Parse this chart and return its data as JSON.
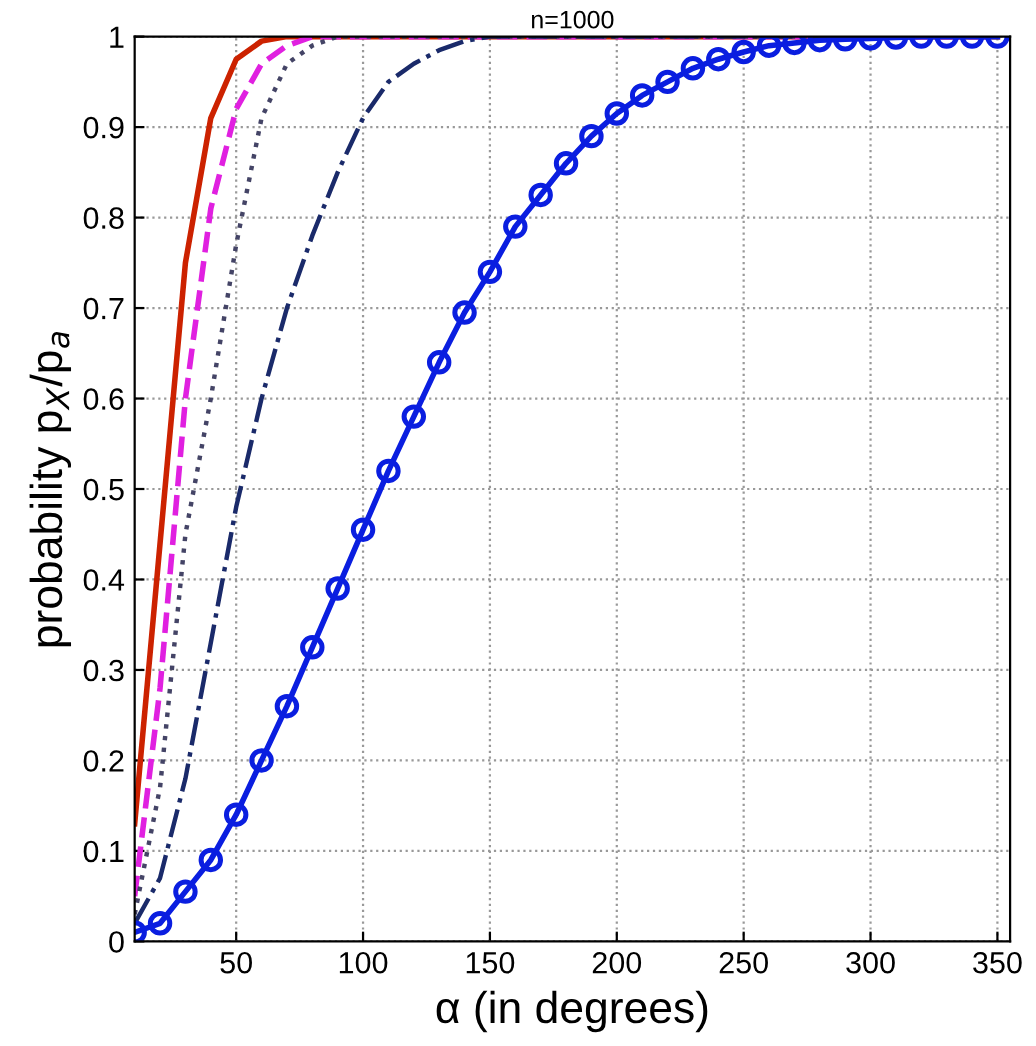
{
  "chart_data": {
    "type": "line",
    "title": "n=1000",
    "xlabel": "α (in degrees)",
    "ylabel": "probability p$_{X}$/p$_{a}$",
    "xlim": [
      10,
      355
    ],
    "ylim": [
      0,
      1
    ],
    "xticks": [
      50,
      100,
      150,
      200,
      250,
      300,
      350
    ],
    "yticks": [
      0,
      0.1,
      0.2,
      0.3,
      0.4,
      0.5,
      0.6,
      0.7,
      0.8,
      0.9,
      1
    ],
    "grid": true,
    "series": [
      {
        "color": "#cc2200",
        "line_style": "solid",
        "marker": "none",
        "x": [
          10,
          20,
          30,
          40,
          50,
          60,
          70,
          350
        ],
        "values": [
          0.13,
          0.44,
          0.75,
          0.91,
          0.975,
          0.995,
          1,
          1
        ]
      },
      {
        "color": "#e020e0",
        "line_style": "dashed",
        "marker": "none",
        "x": [
          10,
          20,
          30,
          40,
          50,
          60,
          70,
          80,
          350
        ],
        "values": [
          0.05,
          0.28,
          0.6,
          0.81,
          0.92,
          0.97,
          0.99,
          1,
          1
        ]
      },
      {
        "color": "#444466",
        "line_style": "dotted",
        "marker": "none",
        "x": [
          10,
          20,
          30,
          40,
          50,
          60,
          70,
          80,
          90,
          350
        ],
        "values": [
          0.03,
          0.17,
          0.45,
          0.6,
          0.77,
          0.91,
          0.97,
          0.99,
          1,
          1
        ]
      },
      {
        "color": "#1a2a6a",
        "line_style": "dashdot",
        "marker": "none",
        "x": [
          10,
          20,
          30,
          40,
          50,
          60,
          70,
          80,
          90,
          100,
          110,
          120,
          130,
          140,
          150,
          350
        ],
        "values": [
          0.02,
          0.07,
          0.18,
          0.33,
          0.48,
          0.6,
          0.7,
          0.78,
          0.85,
          0.91,
          0.95,
          0.97,
          0.985,
          0.995,
          1,
          1
        ]
      },
      {
        "color": "#0a1ee0",
        "line_style": "solid",
        "marker": "circle",
        "x": [
          10,
          20,
          30,
          40,
          50,
          60,
          70,
          80,
          90,
          100,
          110,
          120,
          130,
          140,
          150,
          160,
          170,
          180,
          190,
          200,
          210,
          220,
          230,
          240,
          250,
          260,
          270,
          280,
          290,
          300,
          310,
          320,
          330,
          340,
          350
        ],
        "values": [
          0.01,
          0.02,
          0.055,
          0.09,
          0.14,
          0.2,
          0.26,
          0.325,
          0.39,
          0.455,
          0.52,
          0.58,
          0.64,
          0.695,
          0.74,
          0.79,
          0.825,
          0.86,
          0.89,
          0.915,
          0.935,
          0.95,
          0.965,
          0.975,
          0.983,
          0.99,
          0.993,
          0.996,
          0.997,
          0.998,
          0.999,
          1,
          1,
          1,
          1
        ]
      }
    ]
  }
}
